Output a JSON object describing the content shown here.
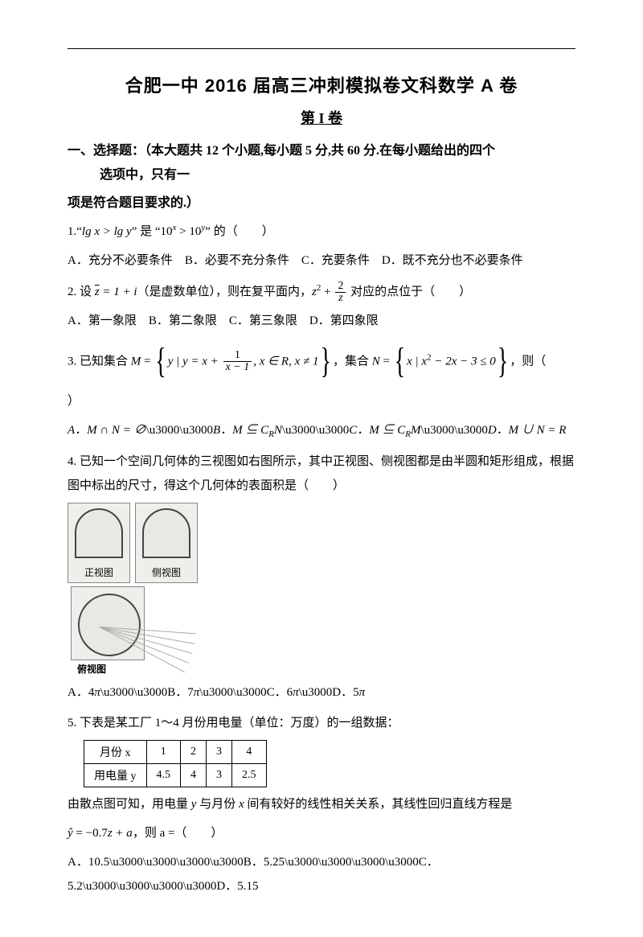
{
  "header": {
    "title": "合肥一中 2016 届高三冲刺模拟卷文科数学 A 卷",
    "volume": "第 I 卷"
  },
  "section": {
    "label_line1": "一、选择题：（本大题共 12 个小题,每小题 5 分,共 60 分.在每小题给出的四个",
    "label_line2": "选项中，只有一",
    "requirement": "项是符合题目要求的.）"
  },
  "q1": {
    "text_a": "1.“",
    "expr1": "lg x > lg y",
    "text_b": "” 是 “",
    "expr2_a": "10",
    "expr2_supx": "x",
    "expr2_mid": " > 10",
    "expr2_supy": "y",
    "text_c": "” 的（　　）",
    "opts": "A．充分不必要条件　B．必要不充分条件　C．充要条件　D．既不充分也不必要条件"
  },
  "q2": {
    "text_a": "2. 设 ",
    "zbar": "z",
    "eq": " = 1 + i",
    "text_b": "（是虚数单位），则在复平面内，",
    "expr_a": "z",
    "sup2": "2",
    "plus": " + ",
    "frac_num": "2",
    "frac_den": "z",
    "text_c": " 对应的点位于（　　）",
    "opts": "A．第一象限　B．第二象限　C．第三象限　D．第四象限"
  },
  "q3": {
    "text_a": "3. 已知集合 ",
    "M": "M",
    "eq": " = ",
    "set_a": "y | y = x + ",
    "frac_num": "1",
    "frac_den": "x − 1",
    "set_b": ", x ∈ R, x ≠ 1",
    "text_b": "，集合 ",
    "N": "N",
    "set_n": "x | x",
    "sup2": "2",
    "set_n2": " − 2x − 3 ≤ 0",
    "text_c": "，则（",
    "text_d": "）",
    "optA": "A．M ∩ N = ∅",
    "optB": "B．M ⊆ C",
    "optB_sub": "R",
    "optB_N": "N",
    "optC": "C．M ⊆ C",
    "optC_sub": "R",
    "optC_M": "M",
    "optD": "D．M ∪ N = R"
  },
  "q4": {
    "text": "4. 已知一个空间几何体的三视图如右图所示，其中正视图、侧视图都是由半圆和矩形组成，根据图中标出的尺寸，得这个几何体的表面积是（　　）",
    "view1": "正视图",
    "view2": "侧视图",
    "view3": "俯视图",
    "optA_a": "A．4",
    "optB_a": "B．7",
    "optC_a": "C．6",
    "optD_a": "D．5",
    "pi": "π"
  },
  "q5": {
    "text": "5. 下表是某工厂 1～4 月份用电量（单位：万度）的一组数据：",
    "table": {
      "row1_h": "月份 x",
      "row1": [
        "1",
        "2",
        "3",
        "4"
      ],
      "row2_h": "用电量 y",
      "row2": [
        "4.5",
        "4",
        "3",
        "2.5"
      ]
    },
    "text2_a": "由散点图可知，用电量 ",
    "y": "y",
    "text2_b": " 与月份 ",
    "x": "x",
    "text2_c": " 间有较好的线性相关关系，其线性回归直线方程是",
    "eqn_a": "ŷ",
    "eqn_b": " = −0.7",
    "eqn_z": "z",
    "eqn_c": " + a",
    "text3": "，则 a =（　　）",
    "optA": "A．10.5",
    "optB": "B．5.25",
    "optC": "C．5.2",
    "optD": "D．5.15"
  }
}
